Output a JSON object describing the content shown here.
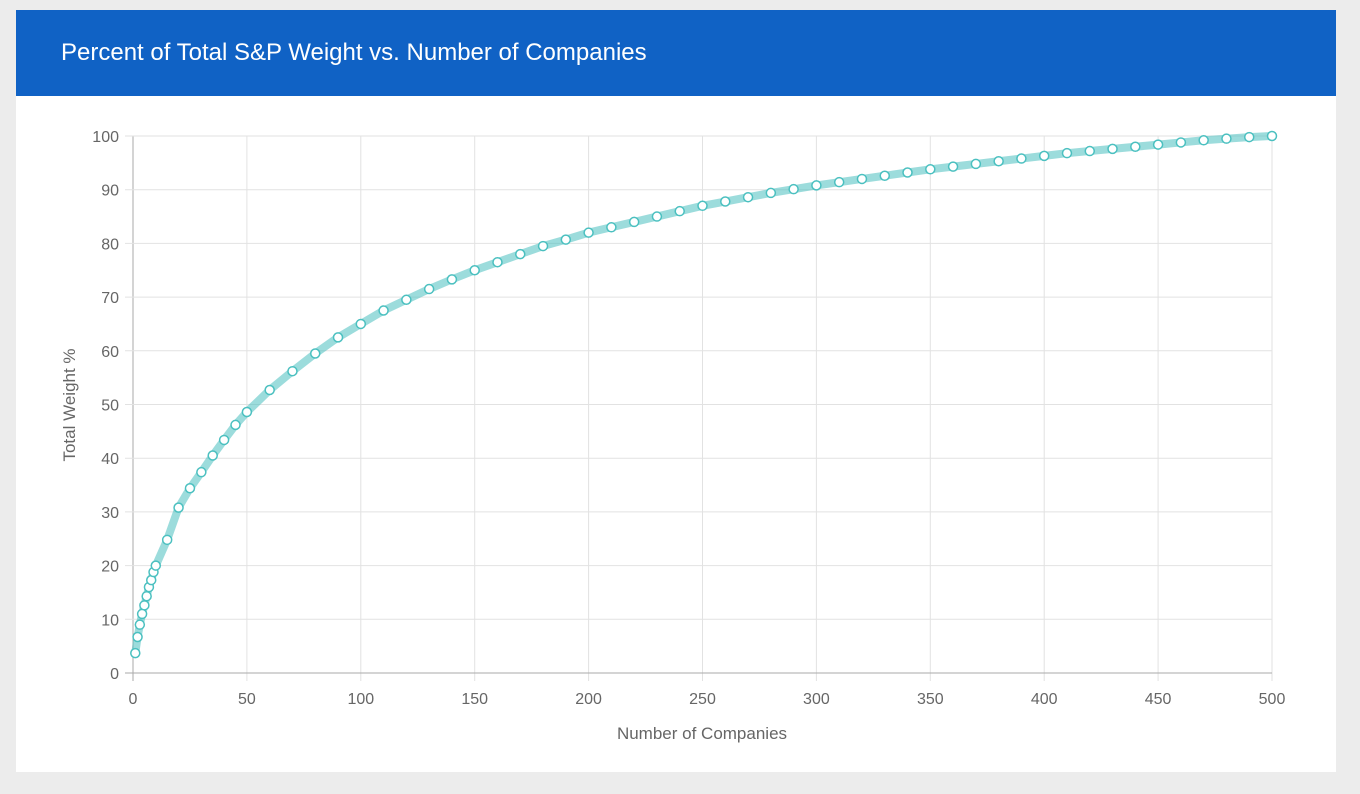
{
  "chart_data": {
    "type": "scatter",
    "title": "Percent of Total S&P Weight vs. Number of Companies",
    "xlabel": "Number of Companies",
    "ylabel": "Total Weight %",
    "xlim": [
      0,
      500
    ],
    "ylim": [
      0,
      100
    ],
    "xticks": [
      0,
      50,
      100,
      150,
      200,
      250,
      300,
      350,
      400,
      450,
      500
    ],
    "yticks": [
      0,
      10,
      20,
      30,
      40,
      50,
      60,
      70,
      80,
      90,
      100
    ],
    "grid": true,
    "marker_color": "#4bc0c0",
    "points": [
      [
        1,
        3.7
      ],
      [
        2,
        6.7
      ],
      [
        3,
        9
      ],
      [
        4,
        11
      ],
      [
        5,
        12.6
      ],
      [
        6,
        14.3
      ],
      [
        7,
        16
      ],
      [
        8,
        17.3
      ],
      [
        9,
        18.8
      ],
      [
        10,
        20
      ],
      [
        15,
        24.8
      ],
      [
        20,
        30.8
      ],
      [
        25,
        34.4
      ],
      [
        30,
        37.4
      ],
      [
        35,
        40.5
      ],
      [
        40,
        43.4
      ],
      [
        45,
        46.2
      ],
      [
        50,
        48.6
      ],
      [
        60,
        52.7
      ],
      [
        70,
        56.2
      ],
      [
        80,
        59.5
      ],
      [
        90,
        62.5
      ],
      [
        100,
        65
      ],
      [
        110,
        67.5
      ],
      [
        120,
        69.5
      ],
      [
        130,
        71.5
      ],
      [
        140,
        73.3
      ],
      [
        150,
        75
      ],
      [
        160,
        76.5
      ],
      [
        170,
        78
      ],
      [
        180,
        79.5
      ],
      [
        190,
        80.7
      ],
      [
        200,
        82
      ],
      [
        210,
        83
      ],
      [
        220,
        84
      ],
      [
        230,
        85
      ],
      [
        240,
        86
      ],
      [
        250,
        87
      ],
      [
        260,
        87.8
      ],
      [
        270,
        88.6
      ],
      [
        280,
        89.4
      ],
      [
        290,
        90.1
      ],
      [
        300,
        90.8
      ],
      [
        310,
        91.4
      ],
      [
        320,
        92
      ],
      [
        330,
        92.6
      ],
      [
        340,
        93.2
      ],
      [
        350,
        93.8
      ],
      [
        360,
        94.3
      ],
      [
        370,
        94.8
      ],
      [
        380,
        95.3
      ],
      [
        390,
        95.8
      ],
      [
        400,
        96.3
      ],
      [
        410,
        96.8
      ],
      [
        420,
        97.2
      ],
      [
        430,
        97.6
      ],
      [
        440,
        98
      ],
      [
        450,
        98.4
      ],
      [
        460,
        98.8
      ],
      [
        470,
        99.2
      ],
      [
        480,
        99.5
      ],
      [
        490,
        99.8
      ],
      [
        500,
        100
      ]
    ]
  }
}
